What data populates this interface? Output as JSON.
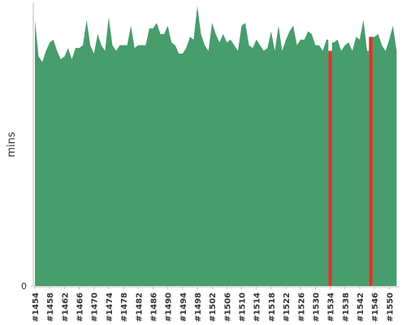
{
  "chart_data": {
    "type": "area",
    "y_label": "mins",
    "categories": [
      "#1454",
      null,
      null,
      null,
      "#1458",
      null,
      null,
      null,
      "#1462",
      null,
      null,
      null,
      "#1466",
      null,
      null,
      null,
      "#1470",
      null,
      null,
      null,
      "#1474",
      null,
      null,
      null,
      "#1478",
      null,
      null,
      null,
      "#1482",
      null,
      null,
      null,
      "#1486",
      null,
      null,
      null,
      "#1490",
      null,
      null,
      null,
      "#1494",
      null,
      null,
      null,
      "#1498",
      null,
      null,
      null,
      "#1502",
      null,
      null,
      null,
      "#1506",
      null,
      null,
      null,
      "#1510",
      null,
      null,
      null,
      "#1514",
      null,
      null,
      null,
      "#1518",
      null,
      null,
      null,
      "#1522",
      null,
      null,
      null,
      "#1526",
      null,
      null,
      null,
      "#1530",
      null,
      null,
      null,
      "#1534",
      null,
      null,
      null,
      "#1538",
      null,
      null,
      null,
      "#1542",
      null,
      null,
      null,
      "#1546",
      null,
      null,
      null,
      "#1550",
      null,
      null
    ],
    "series": [
      {
        "color": "#479d6c",
        "values": [
          9.5,
          8.2,
          8.0,
          8.4,
          8.7,
          8.8,
          8.4,
          8.1,
          8.2,
          8.5,
          8.1,
          8.5,
          8.5,
          8.6,
          9.5,
          8.6,
          8.3,
          9.0,
          8.6,
          8.4,
          9.6,
          8.6,
          8.4,
          8.6,
          8.6,
          8.6,
          9.3,
          8.5,
          8.6,
          8.6,
          8.6,
          9.2,
          9.2,
          9.4,
          9.0,
          9.0,
          9.3,
          8.7,
          8.6,
          8.3,
          8.3,
          8.5,
          8.9,
          8.8,
          10.0,
          9.0,
          8.6,
          8.4,
          9.4,
          9.0,
          8.7,
          9.0,
          8.7,
          8.8,
          8.6,
          8.4,
          9.3,
          9.4,
          8.6,
          8.5,
          8.8,
          8.6,
          8.4,
          8.5,
          9.1,
          8.4,
          9.3,
          8.4,
          8.8,
          9.1,
          9.3,
          8.6,
          8.8,
          8.8,
          9.1,
          9.0,
          8.6,
          8.6,
          8.4,
          8.8,
          null,
          8.7,
          8.8,
          8.4,
          8.6,
          8.7,
          8.4,
          8.9,
          8.8,
          9.5,
          8.4,
          null,
          8.9,
          9.0,
          8.6,
          8.4,
          8.8,
          9.3,
          8.4
        ]
      },
      {
        "color": "#cc3b2a",
        "values": [
          null,
          null,
          null,
          null,
          null,
          null,
          null,
          null,
          null,
          null,
          null,
          null,
          null,
          null,
          null,
          null,
          null,
          null,
          null,
          null,
          null,
          null,
          null,
          null,
          null,
          null,
          null,
          null,
          null,
          null,
          null,
          null,
          null,
          null,
          null,
          null,
          null,
          null,
          null,
          null,
          null,
          null,
          null,
          null,
          null,
          null,
          null,
          null,
          null,
          null,
          null,
          null,
          null,
          null,
          null,
          null,
          null,
          null,
          null,
          null,
          null,
          null,
          null,
          null,
          null,
          null,
          null,
          null,
          null,
          null,
          null,
          null,
          null,
          null,
          null,
          null,
          null,
          null,
          null,
          null,
          8.4,
          null,
          null,
          null,
          null,
          null,
          null,
          null,
          null,
          null,
          null,
          8.9,
          null,
          null,
          null,
          null,
          null,
          null,
          null
        ]
      }
    ],
    "ylim": [
      0,
      10.1
    ],
    "yticks": [
      0
    ]
  }
}
